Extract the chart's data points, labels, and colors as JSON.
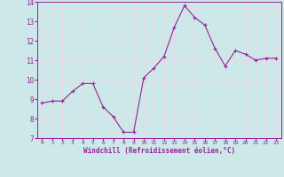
{
  "x": [
    0,
    1,
    2,
    3,
    4,
    5,
    6,
    7,
    8,
    9,
    10,
    11,
    12,
    13,
    14,
    15,
    16,
    17,
    18,
    19,
    20,
    21,
    22,
    23
  ],
  "y": [
    8.8,
    8.9,
    8.9,
    9.4,
    9.8,
    9.8,
    8.6,
    8.1,
    7.3,
    7.3,
    10.1,
    10.6,
    11.2,
    12.7,
    13.8,
    13.2,
    12.8,
    11.6,
    10.7,
    11.5,
    11.3,
    11.0,
    11.1,
    11.1
  ],
  "line_color": "#992299",
  "marker": "P",
  "marker_size": 2.5,
  "bg_color": "#cce8e8",
  "grid_color": "#e8d8e8",
  "xlabel": "Windchill (Refroidissement éolien,°C)",
  "xlabel_color": "#992299",
  "tick_color": "#992299",
  "label_color": "#992299",
  "ylim": [
    7,
    14
  ],
  "xlim": [
    -0.5,
    23.5
  ],
  "yticks": [
    7,
    8,
    9,
    10,
    11,
    12,
    13,
    14
  ],
  "xticks": [
    0,
    1,
    2,
    3,
    4,
    5,
    6,
    7,
    8,
    9,
    10,
    11,
    12,
    13,
    14,
    15,
    16,
    17,
    18,
    19,
    20,
    21,
    22,
    23
  ]
}
